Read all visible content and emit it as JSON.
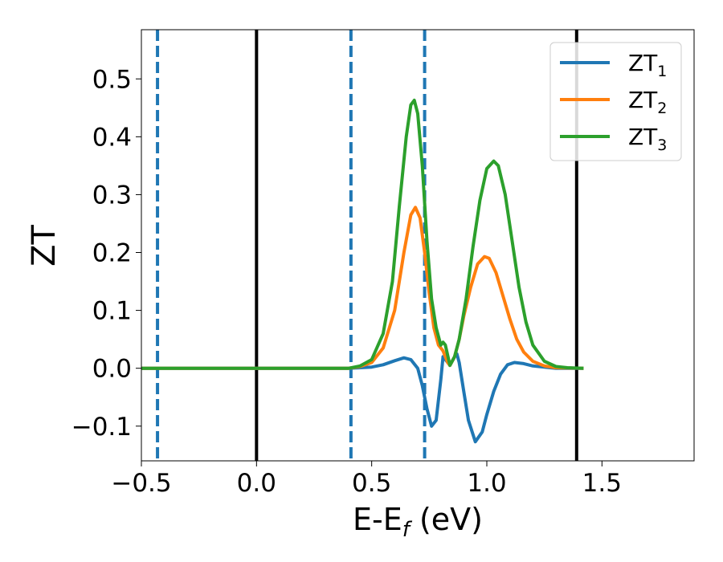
{
  "chart_data": {
    "type": "line",
    "xlabel": "E-E",
    "xlabel_sub": "f",
    "xlabel_unit": " (eV)",
    "ylabel": "ZT",
    "xlim": [
      -0.5,
      1.9
    ],
    "ylim": [
      -0.16,
      0.585
    ],
    "xticks": [
      -0.5,
      0.0,
      0.5,
      1.0,
      1.5
    ],
    "xtick_labels": [
      "−0.5",
      "0.0",
      "0.5",
      "1.0",
      "1.5"
    ],
    "yticks": [
      -0.1,
      0.0,
      0.1,
      0.2,
      0.3,
      0.4,
      0.5
    ],
    "ytick_labels": [
      "−0.1",
      "0.0",
      "0.1",
      "0.2",
      "0.3",
      "0.4",
      "0.5"
    ],
    "grid": false,
    "legend_position": "top-right",
    "vlines_solid": [
      0.0,
      1.39
    ],
    "vlines_dashed": [
      -0.43,
      0.41,
      0.73
    ],
    "vline_solid_color": "#000000",
    "vline_dashed_color": "#1f77b4",
    "series": [
      {
        "name": "ZT",
        "name_sub": "1",
        "color": "#1f77b4",
        "x": [
          -0.5,
          0.4,
          0.5,
          0.55,
          0.6,
          0.64,
          0.67,
          0.7,
          0.72,
          0.74,
          0.76,
          0.78,
          0.8,
          0.81,
          0.83,
          0.84,
          0.86,
          0.87,
          0.88,
          0.9,
          0.92,
          0.95,
          0.98,
          1.0,
          1.03,
          1.06,
          1.09,
          1.12,
          1.16,
          1.2,
          1.25,
          1.3,
          1.42
        ],
        "y": [
          0.0,
          0.0,
          0.002,
          0.006,
          0.013,
          0.018,
          0.015,
          0.0,
          -0.03,
          -0.07,
          -0.1,
          -0.09,
          -0.02,
          0.02,
          0.01,
          0.005,
          0.02,
          0.025,
          0.01,
          -0.04,
          -0.09,
          -0.127,
          -0.11,
          -0.08,
          -0.04,
          -0.01,
          0.006,
          0.01,
          0.008,
          0.004,
          0.002,
          0.0,
          0.0
        ]
      },
      {
        "name": "ZT",
        "name_sub": "2",
        "color": "#ff7f0e",
        "x": [
          -0.5,
          0.4,
          0.45,
          0.5,
          0.55,
          0.6,
          0.64,
          0.67,
          0.69,
          0.71,
          0.73,
          0.75,
          0.77,
          0.79,
          0.81,
          0.83,
          0.84,
          0.86,
          0.88,
          0.9,
          0.93,
          0.96,
          0.99,
          1.01,
          1.04,
          1.07,
          1.1,
          1.13,
          1.16,
          1.2,
          1.25,
          1.3,
          1.42
        ],
        "y": [
          0.0,
          0.0,
          0.003,
          0.01,
          0.035,
          0.1,
          0.2,
          0.265,
          0.278,
          0.26,
          0.2,
          0.13,
          0.07,
          0.04,
          0.03,
          0.01,
          0.005,
          0.02,
          0.05,
          0.09,
          0.14,
          0.18,
          0.193,
          0.19,
          0.165,
          0.125,
          0.085,
          0.05,
          0.028,
          0.012,
          0.004,
          0.001,
          0.0
        ]
      },
      {
        "name": "ZT",
        "name_sub": "3",
        "color": "#2ca02c",
        "x": [
          -0.5,
          0.4,
          0.45,
          0.5,
          0.55,
          0.59,
          0.62,
          0.65,
          0.67,
          0.685,
          0.7,
          0.72,
          0.74,
          0.76,
          0.78,
          0.8,
          0.81,
          0.82,
          0.84,
          0.86,
          0.88,
          0.91,
          0.94,
          0.97,
          1.0,
          1.03,
          1.05,
          1.08,
          1.11,
          1.14,
          1.17,
          1.2,
          1.25,
          1.3,
          1.35,
          1.42
        ],
        "y": [
          0.0,
          0.0,
          0.004,
          0.015,
          0.06,
          0.15,
          0.28,
          0.4,
          0.455,
          0.463,
          0.44,
          0.35,
          0.22,
          0.12,
          0.07,
          0.04,
          0.045,
          0.04,
          0.005,
          0.02,
          0.05,
          0.12,
          0.21,
          0.29,
          0.345,
          0.358,
          0.35,
          0.3,
          0.22,
          0.14,
          0.08,
          0.04,
          0.012,
          0.003,
          0.001,
          0.0
        ]
      }
    ]
  }
}
